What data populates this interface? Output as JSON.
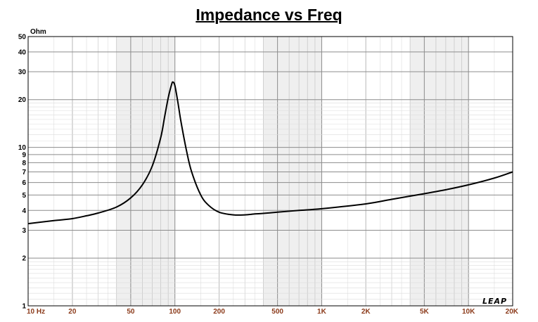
{
  "chart_data": {
    "type": "line",
    "title": "Impedance vs Freq",
    "y_unit": "Ohm",
    "xlabel": "",
    "ylabel": "",
    "x_scale": "log",
    "y_scale": "log",
    "xlim": [
      10,
      20000
    ],
    "ylim": [
      1,
      50
    ],
    "grid": true,
    "x_ticks": [
      {
        "value": 10,
        "label": "10  Hz"
      },
      {
        "value": 20,
        "label": "20"
      },
      {
        "value": 50,
        "label": "50"
      },
      {
        "value": 100,
        "label": "100"
      },
      {
        "value": 200,
        "label": "200"
      },
      {
        "value": 500,
        "label": "500"
      },
      {
        "value": 1000,
        "label": "1K"
      },
      {
        "value": 2000,
        "label": "2K"
      },
      {
        "value": 5000,
        "label": "5K"
      },
      {
        "value": 10000,
        "label": "10K"
      },
      {
        "value": 20000,
        "label": "20K"
      }
    ],
    "y_ticks": [
      {
        "value": 1,
        "label": "1"
      },
      {
        "value": 2,
        "label": "2"
      },
      {
        "value": 3,
        "label": "3"
      },
      {
        "value": 4,
        "label": "4"
      },
      {
        "value": 5,
        "label": "5"
      },
      {
        "value": 6,
        "label": "6"
      },
      {
        "value": 7,
        "label": "7"
      },
      {
        "value": 8,
        "label": "8"
      },
      {
        "value": 9,
        "label": "9"
      },
      {
        "value": 10,
        "label": "10"
      },
      {
        "value": 20,
        "label": "20"
      },
      {
        "value": 30,
        "label": "30"
      },
      {
        "value": 40,
        "label": "40"
      },
      {
        "value": 50,
        "label": "50"
      }
    ],
    "series": [
      {
        "x": [
          10,
          15,
          20,
          25,
          30,
          40,
          50,
          60,
          70,
          80,
          85,
          90,
          95,
          97,
          100,
          105,
          110,
          120,
          130,
          150,
          170,
          200,
          250,
          300,
          350,
          400,
          500,
          700,
          1000,
          2000,
          3000,
          5000,
          7000,
          10000,
          15000,
          20000
        ],
        "y": [
          3.3,
          3.45,
          3.55,
          3.7,
          3.85,
          4.2,
          4.8,
          5.8,
          7.6,
          11.5,
          15.5,
          20.5,
          25.0,
          25.8,
          24.5,
          19.0,
          14.5,
          9.5,
          7.0,
          5.0,
          4.3,
          3.9,
          3.75,
          3.75,
          3.8,
          3.83,
          3.9,
          4.0,
          4.1,
          4.4,
          4.7,
          5.1,
          5.4,
          5.8,
          6.4,
          7.0
        ]
      }
    ]
  },
  "logo_text": "LEAP"
}
